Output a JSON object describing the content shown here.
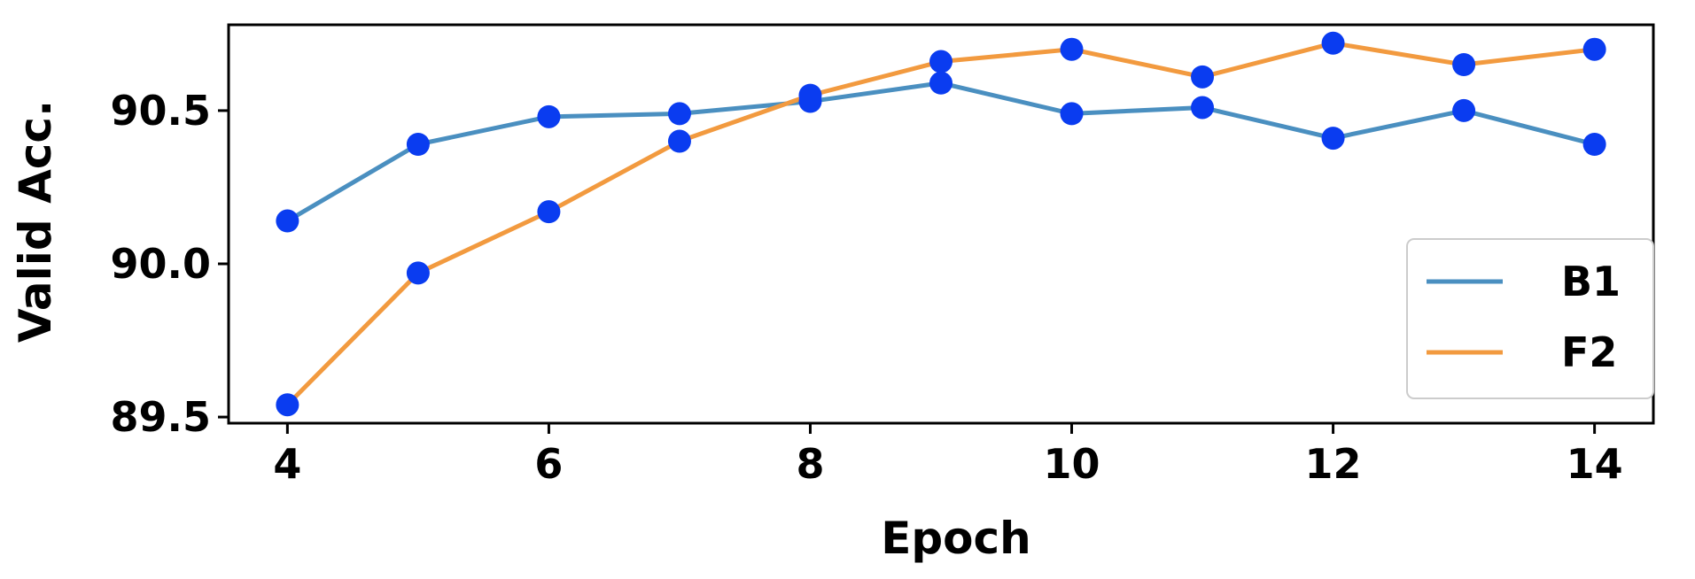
{
  "chart_data": {
    "type": "line",
    "xlabel": "Epoch",
    "ylabel": "Valid Acc.",
    "xlim": [
      3.55,
      14.45
    ],
    "ylim": [
      89.48,
      90.78
    ],
    "xticks": [
      4,
      6,
      8,
      10,
      12,
      14
    ],
    "xtick_labels": [
      "4",
      "6",
      "8",
      "10",
      "12",
      "14"
    ],
    "yticks": [
      89.5,
      90.0,
      90.5
    ],
    "ytick_labels": [
      "89.5",
      "90.0",
      "90.5"
    ],
    "grid": false,
    "legend_position": "lower-right",
    "marker_color": "#0a3cf0",
    "x": [
      4,
      5,
      6,
      7,
      8,
      9,
      10,
      11,
      12,
      13,
      14
    ],
    "series": [
      {
        "name": "B1",
        "color": "#4a8fc0",
        "values": [
          90.14,
          90.39,
          90.48,
          90.49,
          90.53,
          90.59,
          90.49,
          90.51,
          90.41,
          90.5,
          90.39
        ]
      },
      {
        "name": "F2",
        "color": "#f29a3f",
        "values": [
          89.54,
          89.97,
          90.17,
          90.4,
          90.55,
          90.66,
          90.7,
          90.61,
          90.72,
          90.65,
          90.7
        ]
      }
    ]
  }
}
